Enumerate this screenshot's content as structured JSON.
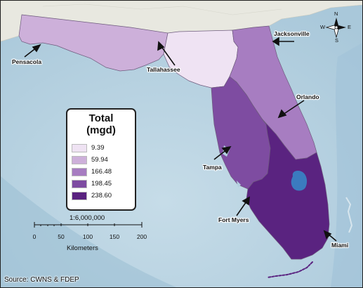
{
  "legend": {
    "title_line1": "Total",
    "title_line2": "(mgd)",
    "classes": [
      {
        "label": "9.39",
        "color": "#efe3f3"
      },
      {
        "label": "59.94",
        "color": "#cdb0da"
      },
      {
        "label": "166.48",
        "color": "#a77dc1"
      },
      {
        "label": "198.45",
        "color": "#7e4ca1"
      },
      {
        "label": "238.60",
        "color": "#5a2380"
      }
    ]
  },
  "cities": {
    "pensacola": "Pensacola",
    "tallahassee": "Tallahassee",
    "jacksonville": "Jacksonville",
    "orlando": "Orlando",
    "tampa": "Tampa",
    "fort_myers": "Fort Myers",
    "miami": "Miami"
  },
  "scale_bar": {
    "ratio": "1:6,000,000",
    "ticks": [
      "0",
      "50",
      "100",
      "150",
      "200"
    ],
    "unit": "Kilometers"
  },
  "compass": {
    "n": "N",
    "s": "S",
    "e": "E",
    "w": "W"
  },
  "source": "Source: CWNS & FDEP",
  "colors": {
    "ocean": "#b4d0e0",
    "land": "#eaeae4",
    "lake": "#3b7bbf"
  }
}
